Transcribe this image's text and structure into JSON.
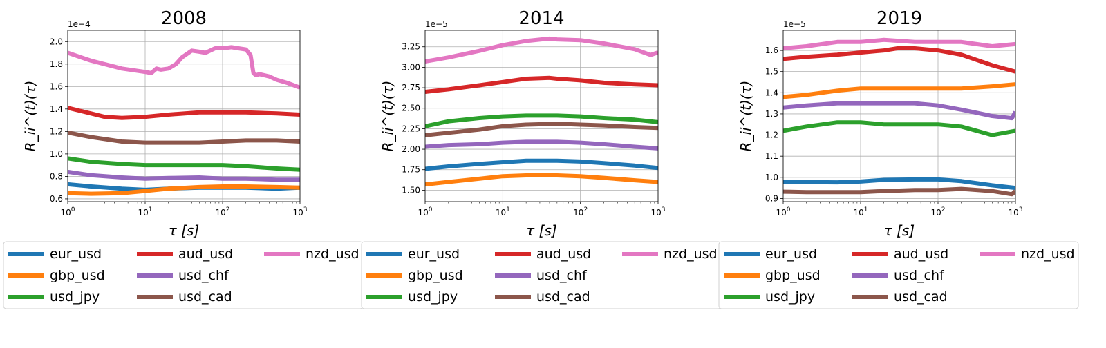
{
  "chart_data": [
    {
      "type": "line",
      "title": "2008",
      "xlabel": "τ [s]",
      "ylabel": "R_ii^(t)(τ)",
      "xscale": "log",
      "xlim": [
        1,
        1000
      ],
      "ylim": [
        0.575,
        2.1
      ],
      "y_multiplier": "1e−4",
      "xticks": [
        "10^0",
        "10^1",
        "10^2",
        "10^3"
      ],
      "yticks": [
        "0.6",
        "0.8",
        "1.0",
        "1.2",
        "1.4",
        "1.6",
        "1.8",
        "2.0"
      ],
      "grid": true,
      "legend_position": "bottom",
      "series": [
        {
          "name": "eur_usd",
          "color": "#1f77b4",
          "x": [
            1,
            2,
            5,
            10,
            20,
            50,
            100,
            200,
            500,
            1000
          ],
          "y": [
            0.73,
            0.71,
            0.69,
            0.68,
            0.69,
            0.7,
            0.7,
            0.7,
            0.69,
            0.7
          ]
        },
        {
          "name": "gbp_usd",
          "color": "#ff7f0e",
          "x": [
            1,
            2,
            5,
            10,
            20,
            50,
            100,
            200,
            500,
            1000
          ],
          "y": [
            0.65,
            0.645,
            0.65,
            0.67,
            0.69,
            0.705,
            0.71,
            0.71,
            0.705,
            0.7
          ]
        },
        {
          "name": "usd_jpy",
          "color": "#2ca02c",
          "x": [
            1,
            2,
            5,
            10,
            20,
            50,
            100,
            200,
            500,
            1000
          ],
          "y": [
            0.96,
            0.93,
            0.91,
            0.9,
            0.9,
            0.9,
            0.9,
            0.89,
            0.87,
            0.86
          ]
        },
        {
          "name": "aud_usd",
          "color": "#d62728",
          "x": [
            1,
            2,
            3,
            5,
            10,
            20,
            50,
            100,
            200,
            500,
            1000
          ],
          "y": [
            1.41,
            1.36,
            1.33,
            1.32,
            1.33,
            1.35,
            1.37,
            1.37,
            1.37,
            1.36,
            1.35
          ]
        },
        {
          "name": "usd_chf",
          "color": "#9467bd",
          "x": [
            1,
            2,
            5,
            10,
            20,
            50,
            100,
            200,
            500,
            1000
          ],
          "y": [
            0.84,
            0.81,
            0.79,
            0.78,
            0.785,
            0.79,
            0.78,
            0.78,
            0.77,
            0.77
          ]
        },
        {
          "name": "usd_cad",
          "color": "#8c564b",
          "x": [
            1,
            2,
            5,
            10,
            20,
            50,
            100,
            200,
            500,
            1000
          ],
          "y": [
            1.19,
            1.15,
            1.11,
            1.1,
            1.1,
            1.1,
            1.11,
            1.12,
            1.12,
            1.11
          ]
        },
        {
          "name": "nzd_usd",
          "color": "#e377c2",
          "x": [
            1,
            2,
            5,
            10,
            12,
            14,
            16,
            20,
            25,
            30,
            40,
            50,
            60,
            80,
            100,
            130,
            160,
            200,
            230,
            250,
            270,
            300,
            400,
            500,
            700,
            1000
          ],
          "y": [
            1.9,
            1.83,
            1.76,
            1.73,
            1.72,
            1.76,
            1.75,
            1.76,
            1.8,
            1.86,
            1.92,
            1.91,
            1.9,
            1.94,
            1.94,
            1.95,
            1.94,
            1.93,
            1.88,
            1.72,
            1.7,
            1.71,
            1.69,
            1.66,
            1.63,
            1.59
          ]
        }
      ]
    },
    {
      "type": "line",
      "title": "2014",
      "xlabel": "τ [s]",
      "ylabel": "R_ii^(t)(τ)",
      "xscale": "log",
      "xlim": [
        1,
        1000
      ],
      "ylim": [
        1.36,
        3.45
      ],
      "y_multiplier": "1e−5",
      "xticks": [
        "10^0",
        "10^1",
        "10^2",
        "10^3"
      ],
      "yticks": [
        "1.50",
        "1.75",
        "2.00",
        "2.25",
        "2.50",
        "2.75",
        "3.00",
        "3.25"
      ],
      "grid": true,
      "legend_position": "bottom",
      "series": [
        {
          "name": "eur_usd",
          "color": "#1f77b4",
          "x": [
            1,
            2,
            5,
            10,
            20,
            50,
            100,
            200,
            500,
            1000
          ],
          "y": [
            1.76,
            1.79,
            1.82,
            1.84,
            1.86,
            1.86,
            1.85,
            1.83,
            1.8,
            1.77
          ]
        },
        {
          "name": "gbp_usd",
          "color": "#ff7f0e",
          "x": [
            1,
            2,
            5,
            10,
            20,
            50,
            100,
            200,
            500,
            1000
          ],
          "y": [
            1.57,
            1.6,
            1.64,
            1.67,
            1.68,
            1.68,
            1.67,
            1.65,
            1.62,
            1.6
          ]
        },
        {
          "name": "usd_jpy",
          "color": "#2ca02c",
          "x": [
            1,
            2,
            5,
            10,
            20,
            50,
            100,
            200,
            500,
            1000
          ],
          "y": [
            2.28,
            2.34,
            2.38,
            2.4,
            2.41,
            2.41,
            2.4,
            2.38,
            2.36,
            2.33
          ]
        },
        {
          "name": "aud_usd",
          "color": "#d62728",
          "x": [
            1,
            2,
            5,
            10,
            20,
            40,
            50,
            100,
            200,
            500,
            1000
          ],
          "y": [
            2.7,
            2.73,
            2.78,
            2.82,
            2.86,
            2.87,
            2.86,
            2.84,
            2.81,
            2.79,
            2.78
          ]
        },
        {
          "name": "usd_chf",
          "color": "#9467bd",
          "x": [
            1,
            2,
            5,
            10,
            20,
            50,
            100,
            200,
            500,
            1000
          ],
          "y": [
            2.03,
            2.05,
            2.06,
            2.08,
            2.09,
            2.09,
            2.08,
            2.06,
            2.03,
            2.01
          ]
        },
        {
          "name": "usd_cad",
          "color": "#8c564b",
          "x": [
            1,
            2,
            5,
            10,
            20,
            50,
            100,
            200,
            500,
            1000
          ],
          "y": [
            2.17,
            2.2,
            2.24,
            2.28,
            2.3,
            2.31,
            2.3,
            2.29,
            2.27,
            2.26
          ]
        },
        {
          "name": "nzd_usd",
          "color": "#e377c2",
          "x": [
            1,
            2,
            5,
            10,
            20,
            40,
            50,
            100,
            200,
            500,
            800,
            1000
          ],
          "y": [
            3.07,
            3.12,
            3.2,
            3.27,
            3.32,
            3.35,
            3.34,
            3.33,
            3.29,
            3.22,
            3.15,
            3.18
          ]
        }
      ]
    },
    {
      "type": "line",
      "title": "2019",
      "xlabel": "τ [s]",
      "ylabel": "R_ii^(t)(τ)",
      "xscale": "log",
      "xlim": [
        1,
        1000
      ],
      "ylim": [
        0.885,
        1.695
      ],
      "y_multiplier": "1e−5",
      "xticks": [
        "10^0",
        "10^1",
        "10^2",
        "10^3"
      ],
      "yticks": [
        "0.9",
        "1.0",
        "1.1",
        "1.2",
        "1.3",
        "1.4",
        "1.5",
        "1.6"
      ],
      "grid": true,
      "legend_position": "bottom",
      "series": [
        {
          "name": "eur_usd",
          "color": "#1f77b4",
          "x": [
            1,
            2,
            5,
            10,
            20,
            50,
            100,
            200,
            500,
            1000
          ],
          "y": [
            0.978,
            0.977,
            0.976,
            0.98,
            0.988,
            0.99,
            0.99,
            0.982,
            0.962,
            0.95
          ]
        },
        {
          "name": "gbp_usd",
          "color": "#ff7f0e",
          "x": [
            1,
            2,
            5,
            10,
            20,
            50,
            100,
            200,
            500,
            1000
          ],
          "y": [
            1.38,
            1.39,
            1.41,
            1.42,
            1.42,
            1.42,
            1.42,
            1.42,
            1.43,
            1.44
          ]
        },
        {
          "name": "usd_jpy",
          "color": "#2ca02c",
          "x": [
            1,
            2,
            5,
            10,
            20,
            50,
            100,
            200,
            500,
            1000
          ],
          "y": [
            1.22,
            1.24,
            1.26,
            1.26,
            1.25,
            1.25,
            1.25,
            1.24,
            1.2,
            1.22
          ]
        },
        {
          "name": "aud_usd",
          "color": "#d62728",
          "x": [
            1,
            2,
            5,
            10,
            20,
            30,
            50,
            100,
            200,
            500,
            1000
          ],
          "y": [
            1.56,
            1.57,
            1.58,
            1.59,
            1.6,
            1.61,
            1.61,
            1.6,
            1.58,
            1.53,
            1.5
          ]
        },
        {
          "name": "usd_chf",
          "color": "#9467bd",
          "x": [
            1,
            2,
            5,
            10,
            20,
            50,
            100,
            200,
            500,
            900,
            1000
          ],
          "y": [
            1.33,
            1.34,
            1.35,
            1.35,
            1.35,
            1.35,
            1.34,
            1.32,
            1.29,
            1.28,
            1.31
          ]
        },
        {
          "name": "usd_cad",
          "color": "#8c564b",
          "x": [
            1,
            2,
            5,
            10,
            20,
            50,
            100,
            200,
            500,
            900,
            1000
          ],
          "y": [
            0.932,
            0.93,
            0.93,
            0.93,
            0.935,
            0.94,
            0.94,
            0.945,
            0.935,
            0.92,
            0.935
          ]
        },
        {
          "name": "nzd_usd",
          "color": "#e377c2",
          "x": [
            1,
            2,
            5,
            10,
            20,
            50,
            100,
            200,
            500,
            1000
          ],
          "y": [
            1.61,
            1.62,
            1.64,
            1.64,
            1.65,
            1.64,
            1.64,
            1.64,
            1.62,
            1.63
          ]
        }
      ]
    }
  ]
}
